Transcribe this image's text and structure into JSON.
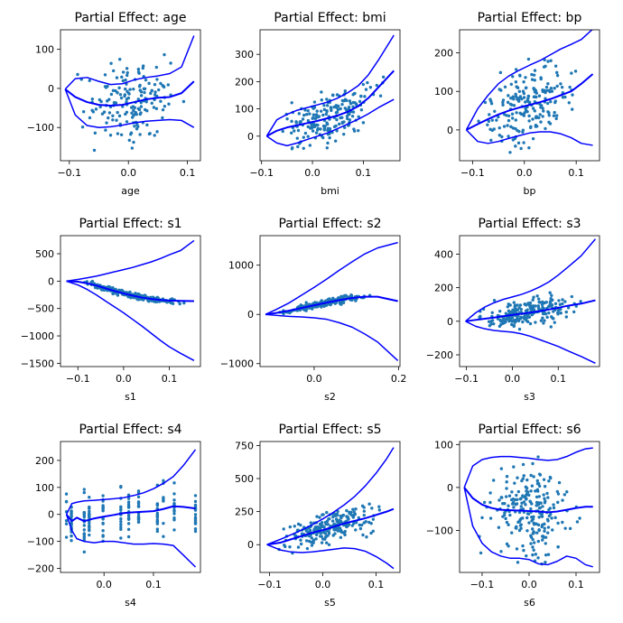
{
  "chart_data": [
    {
      "type": "scatter",
      "title": "Partial Effect: age",
      "xlabel": "age",
      "xlim": [
        -0.115,
        0.122
      ],
      "ylim": [
        -185,
        150
      ],
      "xticks": [
        -0.1,
        0.0,
        0.1
      ],
      "xtick_labels": [
        "−0.1",
        "0.0",
        "0.1"
      ],
      "yticks": [
        -100,
        0,
        100
      ],
      "ytick_labels": [
        "−100",
        "0",
        "100"
      ],
      "fit": {
        "x": [
          -0.107,
          -0.09,
          -0.07,
          -0.05,
          -0.03,
          -0.01,
          0.01,
          0.03,
          0.05,
          0.07,
          0.09,
          0.111
        ],
        "y": [
          -2,
          -22,
          -35,
          -42,
          -44,
          -42,
          -35,
          -28,
          -24,
          -22,
          -12,
          18
        ]
      },
      "upper": {
        "x": [
          -0.107,
          -0.09,
          -0.07,
          -0.05,
          -0.03,
          -0.01,
          0.01,
          0.03,
          0.05,
          0.07,
          0.09,
          0.111
        ],
        "y": [
          -2,
          25,
          28,
          18,
          10,
          12,
          22,
          28,
          32,
          38,
          55,
          135
        ]
      },
      "lower": {
        "x": [
          -0.107,
          -0.09,
          -0.07,
          -0.05,
          -0.03,
          -0.01,
          0.01,
          0.03,
          0.05,
          0.07,
          0.09,
          0.111
        ],
        "y": [
          -2,
          -68,
          -95,
          -100,
          -98,
          -94,
          -88,
          -84,
          -82,
          -80,
          -82,
          -100
        ]
      },
      "scatter": {
        "seed": 11,
        "n": 170,
        "noise": 48,
        "cont": 1,
        "xmin": -0.107,
        "xmax": 0.111,
        "ymin": -175,
        "ymax": 130
      }
    },
    {
      "type": "scatter",
      "title": "Partial Effect: bmi",
      "xlabel": "bmi",
      "xlim": [
        -0.103,
        0.172
      ],
      "ylim": [
        -90,
        390
      ],
      "xticks": [
        -0.1,
        0.0,
        0.1
      ],
      "xtick_labels": [
        "−0.1",
        "0.0",
        "0.1"
      ],
      "yticks": [
        0,
        100,
        200,
        300
      ],
      "ytick_labels": [
        "0",
        "100",
        "200",
        "300"
      ],
      "fit": {
        "x": [
          -0.09,
          -0.07,
          -0.05,
          -0.03,
          -0.01,
          0.01,
          0.03,
          0.05,
          0.07,
          0.09,
          0.11,
          0.13,
          0.16
        ],
        "y": [
          0,
          20,
          32,
          40,
          48,
          56,
          66,
          76,
          90,
          110,
          140,
          180,
          240
        ]
      },
      "upper": {
        "x": [
          -0.09,
          -0.07,
          -0.05,
          -0.03,
          -0.01,
          0.01,
          0.03,
          0.05,
          0.07,
          0.09,
          0.11,
          0.13,
          0.16
        ],
        "y": [
          0,
          60,
          80,
          95,
          105,
          115,
          125,
          140,
          160,
          185,
          225,
          280,
          370
        ]
      },
      "lower": {
        "x": [
          -0.09,
          -0.07,
          -0.05,
          -0.03,
          -0.01,
          0.01,
          0.03,
          0.05,
          0.07,
          0.09,
          0.11,
          0.13,
          0.16
        ],
        "y": [
          0,
          -25,
          -35,
          -25,
          -12,
          0,
          12,
          28,
          45,
          62,
          82,
          105,
          135
        ]
      },
      "scatter": {
        "seed": 23,
        "n": 200,
        "noise": 45,
        "cont": 1,
        "xmin": -0.09,
        "xmax": 0.16,
        "ymin": -70,
        "ymax": 260
      }
    },
    {
      "type": "scatter",
      "title": "Partial Effect: bp",
      "xlabel": "bp",
      "xlim": [
        -0.125,
        0.145
      ],
      "ylim": [
        -80,
        260
      ],
      "xticks": [
        -0.1,
        0.0,
        0.1
      ],
      "xtick_labels": [
        "−0.1",
        "0.0",
        "0.1"
      ],
      "yticks": [
        0,
        100,
        200
      ],
      "ytick_labels": [
        "0",
        "100",
        "200"
      ],
      "fit": {
        "x": [
          -0.112,
          -0.09,
          -0.07,
          -0.05,
          -0.03,
          -0.01,
          0.01,
          0.03,
          0.05,
          0.07,
          0.09,
          0.11,
          0.132
        ],
        "y": [
          0,
          15,
          28,
          40,
          50,
          58,
          65,
          72,
          80,
          90,
          100,
          120,
          145
        ]
      },
      "upper": {
        "x": [
          -0.112,
          -0.09,
          -0.07,
          -0.05,
          -0.03,
          -0.01,
          0.01,
          0.03,
          0.05,
          0.07,
          0.09,
          0.11,
          0.132
        ],
        "y": [
          0,
          55,
          90,
          120,
          140,
          155,
          168,
          180,
          195,
          210,
          222,
          235,
          262
        ]
      },
      "lower": {
        "x": [
          -0.112,
          -0.09,
          -0.07,
          -0.05,
          -0.03,
          -0.01,
          0.01,
          0.03,
          0.05,
          0.07,
          0.09,
          0.11,
          0.132
        ],
        "y": [
          0,
          -30,
          -35,
          -30,
          -22,
          -15,
          -8,
          -5,
          -5,
          -10,
          -20,
          -35,
          -40
        ]
      },
      "scatter": {
        "seed": 37,
        "n": 200,
        "noise": 48,
        "cont": 1,
        "xmin": -0.112,
        "xmax": 0.132,
        "ymin": -70,
        "ymax": 215
      }
    },
    {
      "type": "scatter",
      "title": "Partial Effect: s1",
      "xlabel": "s1",
      "xlim": [
        -0.138,
        0.168
      ],
      "ylim": [
        -1560,
        830
      ],
      "xticks": [
        -0.1,
        0.0,
        0.1
      ],
      "xtick_labels": [
        "−0.1",
        "0.0",
        "0.1"
      ],
      "yticks": [
        -1500,
        -1000,
        -500,
        0,
        500
      ],
      "ytick_labels": [
        "−1500",
        "−1000",
        "−500",
        "0",
        "500"
      ],
      "fit": {
        "x": [
          -0.125,
          -0.1,
          -0.08,
          -0.06,
          -0.04,
          -0.02,
          0.0,
          0.02,
          0.04,
          0.06,
          0.08,
          0.1,
          0.125,
          0.154
        ],
        "y": [
          0,
          -10,
          -40,
          -80,
          -130,
          -180,
          -225,
          -265,
          -300,
          -325,
          -345,
          -355,
          -360,
          -365
        ]
      },
      "upper": {
        "x": [
          -0.125,
          -0.1,
          -0.08,
          -0.06,
          -0.04,
          -0.02,
          0.0,
          0.02,
          0.04,
          0.06,
          0.08,
          0.1,
          0.125,
          0.154
        ],
        "y": [
          0,
          30,
          60,
          90,
          130,
          170,
          210,
          250,
          300,
          350,
          410,
          480,
          560,
          740
        ]
      },
      "lower": {
        "x": [
          -0.125,
          -0.1,
          -0.08,
          -0.06,
          -0.04,
          -0.02,
          0.0,
          0.02,
          0.04,
          0.06,
          0.08,
          0.1,
          0.125,
          0.154
        ],
        "y": [
          0,
          -70,
          -150,
          -250,
          -360,
          -470,
          -580,
          -700,
          -820,
          -950,
          -1080,
          -1200,
          -1320,
          -1450
        ]
      },
      "scatter": {
        "seed": 5,
        "n": 230,
        "noise": 28,
        "cont": 1,
        "xmin": -0.12,
        "xmax": 0.154,
        "ymin": -480,
        "ymax": 40
      }
    },
    {
      "type": "scatter",
      "title": "Partial Effect: s2",
      "xlabel": "s2",
      "xlim": [
        -0.128,
        0.203
      ],
      "ylim": [
        -1060,
        1600
      ],
      "xticks": [
        0.0,
        0.2
      ],
      "xtick_labels": [
        "0.0",
        "0.2"
      ],
      "yticks": [
        -1000,
        0,
        1000
      ],
      "ytick_labels": [
        "−1000",
        "0",
        "1000"
      ],
      "fit": {
        "x": [
          -0.115,
          -0.09,
          -0.06,
          -0.03,
          0.0,
          0.03,
          0.06,
          0.09,
          0.12,
          0.15,
          0.198
        ],
        "y": [
          0,
          30,
          75,
          130,
          185,
          240,
          290,
          335,
          360,
          360,
          270
        ]
      },
      "upper": {
        "x": [
          -0.115,
          -0.09,
          -0.06,
          -0.03,
          0.0,
          0.03,
          0.06,
          0.09,
          0.12,
          0.15,
          0.198
        ],
        "y": [
          0,
          100,
          230,
          390,
          550,
          720,
          900,
          1070,
          1230,
          1350,
          1460
        ]
      },
      "lower": {
        "x": [
          -0.115,
          -0.09,
          -0.06,
          -0.03,
          0.0,
          0.03,
          0.06,
          0.09,
          0.12,
          0.15,
          0.198
        ],
        "y": [
          0,
          -20,
          -40,
          -50,
          -70,
          -100,
          -170,
          -260,
          -400,
          -560,
          -940
        ]
      },
      "scatter": {
        "seed": 19,
        "n": 230,
        "noise": 35,
        "cont": 1,
        "xmin": -0.115,
        "xmax": 0.16,
        "ymin": -60,
        "ymax": 420
      }
    },
    {
      "type": "scatter",
      "title": "Partial Effect: s3",
      "xlabel": "s3",
      "xlim": [
        -0.115,
        0.19
      ],
      "ylim": [
        -270,
        510
      ],
      "xticks": [
        -0.1,
        0.0,
        0.1
      ],
      "xtick_labels": [
        "−0.1",
        "0.0",
        "0.1"
      ],
      "yticks": [
        -200,
        0,
        200,
        400
      ],
      "ytick_labels": [
        "−200",
        "0",
        "200",
        "400"
      ],
      "fit": {
        "x": [
          -0.102,
          -0.08,
          -0.06,
          -0.04,
          -0.02,
          0.0,
          0.02,
          0.04,
          0.06,
          0.08,
          0.1,
          0.12,
          0.15,
          0.181
        ],
        "y": [
          0,
          8,
          15,
          22,
          30,
          38,
          45,
          52,
          60,
          70,
          80,
          92,
          105,
          125
        ]
      },
      "upper": {
        "x": [
          -0.102,
          -0.08,
          -0.06,
          -0.04,
          -0.02,
          0.0,
          0.02,
          0.04,
          0.06,
          0.08,
          0.1,
          0.12,
          0.15,
          0.181
        ],
        "y": [
          0,
          50,
          85,
          110,
          130,
          145,
          160,
          180,
          205,
          235,
          275,
          320,
          390,
          490
        ]
      },
      "lower": {
        "x": [
          -0.102,
          -0.08,
          -0.06,
          -0.04,
          -0.02,
          0.0,
          0.02,
          0.04,
          0.06,
          0.08,
          0.1,
          0.12,
          0.15,
          0.181
        ],
        "y": [
          0,
          -30,
          -45,
          -55,
          -60,
          -65,
          -75,
          -90,
          -110,
          -130,
          -150,
          -175,
          -210,
          -250
        ]
      },
      "scatter": {
        "seed": 47,
        "n": 220,
        "noise": 40,
        "cont": 1,
        "xmin": -0.102,
        "xmax": 0.18,
        "ymin": -80,
        "ymax": 170
      }
    },
    {
      "type": "scatter",
      "title": "Partial Effect: s4",
      "xlabel": "s4",
      "xlim": [
        -0.088,
        0.195
      ],
      "ylim": [
        -215,
        270
      ],
      "xticks": [
        0.0,
        0.1
      ],
      "xtick_labels": [
        "0.0",
        "0.1"
      ],
      "yticks": [
        -200,
        -100,
        0,
        100,
        200
      ],
      "ytick_labels": [
        "−200",
        "−100",
        "0",
        "100",
        "200"
      ],
      "fit": {
        "x": [
          -0.076,
          -0.065,
          -0.055,
          -0.04,
          -0.02,
          0.0,
          0.02,
          0.04,
          0.06,
          0.08,
          0.1,
          0.12,
          0.14,
          0.16,
          0.185
        ],
        "y": [
          0,
          -25,
          -12,
          -25,
          -15,
          -8,
          -2,
          5,
          8,
          10,
          12,
          20,
          30,
          28,
          22
        ]
      },
      "upper": {
        "x": [
          -0.076,
          -0.065,
          -0.055,
          -0.04,
          -0.02,
          0.0,
          0.02,
          0.04,
          0.06,
          0.08,
          0.1,
          0.12,
          0.14,
          0.16,
          0.185
        ],
        "y": [
          0,
          40,
          45,
          50,
          52,
          55,
          58,
          62,
          70,
          80,
          95,
          115,
          140,
          180,
          240
        ]
      },
      "lower": {
        "x": [
          -0.076,
          -0.065,
          -0.055,
          -0.04,
          -0.02,
          0.0,
          0.02,
          0.04,
          0.06,
          0.08,
          0.1,
          0.12,
          0.14,
          0.16,
          0.185
        ],
        "y": [
          0,
          -60,
          -90,
          -100,
          -105,
          -100,
          -100,
          -105,
          -110,
          -110,
          -108,
          -110,
          -115,
          -150,
          -195
        ]
      },
      "scatter": {
        "seed": 53,
        "n": 200,
        "noise": 45,
        "cont": 0,
        "levels": [
          -0.076,
          -0.066,
          -0.04,
          -0.03,
          -0.002,
          0.034,
          0.05,
          0.07,
          0.108,
          0.12,
          0.142,
          0.185
        ],
        "xmin": -0.076,
        "xmax": 0.185,
        "ymin": -160,
        "ymax": 135
      }
    },
    {
      "type": "scatter",
      "title": "Partial Effect: s5",
      "xlabel": "s5",
      "xlim": [
        -0.118,
        0.145
      ],
      "ylim": [
        -210,
        780
      ],
      "xticks": [
        -0.1,
        0.0,
        0.1
      ],
      "xtick_labels": [
        "−0.1",
        "0.0",
        "0.1"
      ],
      "yticks": [
        0,
        250,
        500,
        750
      ],
      "ytick_labels": [
        "0",
        "250",
        "500",
        "750"
      ],
      "fit": {
        "x": [
          -0.105,
          -0.08,
          -0.06,
          -0.04,
          -0.02,
          0.0,
          0.02,
          0.04,
          0.06,
          0.08,
          0.1,
          0.12,
          0.133
        ],
        "y": [
          0,
          15,
          40,
          65,
          90,
          110,
          135,
          160,
          180,
          200,
          225,
          250,
          270
        ]
      },
      "upper": {
        "x": [
          -0.105,
          -0.08,
          -0.06,
          -0.04,
          -0.02,
          0.0,
          0.02,
          0.04,
          0.06,
          0.08,
          0.1,
          0.12,
          0.133
        ],
        "y": [
          0,
          40,
          75,
          110,
          150,
          195,
          245,
          300,
          365,
          445,
          540,
          650,
          735
        ]
      },
      "lower": {
        "x": [
          -0.105,
          -0.08,
          -0.06,
          -0.04,
          -0.02,
          0.0,
          0.02,
          0.04,
          0.06,
          0.08,
          0.1,
          0.12,
          0.133
        ],
        "y": [
          0,
          -40,
          -55,
          -60,
          -55,
          -45,
          -35,
          -25,
          -30,
          -50,
          -90,
          -140,
          -180
        ]
      },
      "scatter": {
        "seed": 61,
        "n": 220,
        "noise": 55,
        "cont": 1,
        "xmin": -0.105,
        "xmax": 0.133,
        "ymin": -80,
        "ymax": 340
      }
    },
    {
      "type": "scatter",
      "title": "Partial Effect: s6",
      "xlabel": "s6",
      "xlim": [
        -0.148,
        0.15
      ],
      "ylim": [
        -198,
        107
      ],
      "xticks": [
        -0.1,
        0.0,
        0.1
      ],
      "xtick_labels": [
        "−0.1",
        "0.0",
        "0.1"
      ],
      "yticks": [
        -100,
        0,
        100
      ],
      "ytick_labels": [
        "−100",
        "0",
        "100"
      ],
      "fit": {
        "x": [
          -0.138,
          -0.12,
          -0.1,
          -0.08,
          -0.06,
          -0.04,
          -0.02,
          0.0,
          0.02,
          0.04,
          0.06,
          0.08,
          0.1,
          0.12,
          0.136
        ],
        "y": [
          0,
          -25,
          -40,
          -48,
          -52,
          -53,
          -54,
          -55,
          -56,
          -58,
          -56,
          -52,
          -48,
          -45,
          -45
        ]
      },
      "upper": {
        "x": [
          -0.138,
          -0.12,
          -0.1,
          -0.08,
          -0.06,
          -0.04,
          -0.02,
          0.0,
          0.02,
          0.04,
          0.06,
          0.08,
          0.1,
          0.12,
          0.136
        ],
        "y": [
          0,
          50,
          65,
          70,
          72,
          72,
          70,
          68,
          65,
          63,
          65,
          72,
          82,
          90,
          92
        ]
      },
      "lower": {
        "x": [
          -0.138,
          -0.12,
          -0.1,
          -0.08,
          -0.06,
          -0.04,
          -0.02,
          0.0,
          0.02,
          0.04,
          0.06,
          0.08,
          0.1,
          0.12,
          0.136
        ],
        "y": [
          0,
          -90,
          -130,
          -150,
          -160,
          -165,
          -165,
          -168,
          -178,
          -180,
          -172,
          -160,
          -165,
          -180,
          -185
        ]
      },
      "scatter": {
        "seed": 71,
        "n": 230,
        "noise": 50,
        "cont": 1,
        "xmin": -0.125,
        "xmax": 0.125,
        "ymin": -185,
        "ymax": 95
      }
    }
  ]
}
